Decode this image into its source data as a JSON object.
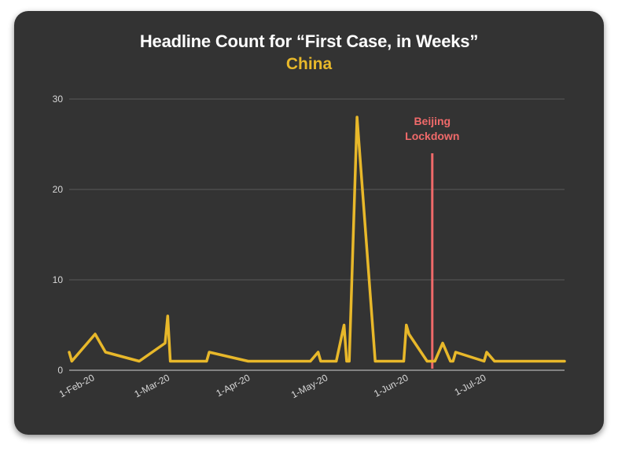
{
  "header": {
    "title": "Headline Count for “First Case, in Weeks”",
    "subtitle": "China"
  },
  "colors": {
    "background": "#333333",
    "line": "#E8B82A",
    "annotation": "#F06A6A",
    "grid": "#5a5a5a",
    "axis": "#d0d0d0"
  },
  "chart_data": {
    "type": "line",
    "title": "Headline Count for “First Case, in Weeks”",
    "subtitle": "China",
    "xlabel": "",
    "ylabel": "",
    "xlim": [
      "2020-01-22",
      "2020-07-31"
    ],
    "ylim": [
      0,
      30
    ],
    "yticks": [
      0,
      10,
      20,
      30
    ],
    "x_tick_labels": [
      {
        "date": "2020-02-01",
        "label": "1-Feb-20"
      },
      {
        "date": "2020-03-01",
        "label": "1-Mar-20"
      },
      {
        "date": "2020-04-01",
        "label": "1-Apr-20"
      },
      {
        "date": "2020-05-01",
        "label": "1-May-20"
      },
      {
        "date": "2020-06-01",
        "label": "1-Jun-20"
      },
      {
        "date": "2020-07-01",
        "label": "1-Jul-20"
      }
    ],
    "grid": true,
    "series": [
      {
        "color": "#E8B82A",
        "points": [
          [
            "2020-01-22",
            2
          ],
          [
            "2020-01-23",
            1
          ],
          [
            "2020-02-01",
            4
          ],
          [
            "2020-02-05",
            2
          ],
          [
            "2020-02-18",
            1
          ],
          [
            "2020-02-28",
            3
          ],
          [
            "2020-02-29",
            6
          ],
          [
            "2020-03-01",
            1
          ],
          [
            "2020-03-15",
            1
          ],
          [
            "2020-03-16",
            2
          ],
          [
            "2020-03-31",
            1
          ],
          [
            "2020-04-24",
            1
          ],
          [
            "2020-04-27",
            2
          ],
          [
            "2020-04-28",
            1
          ],
          [
            "2020-05-04",
            1
          ],
          [
            "2020-05-07",
            5
          ],
          [
            "2020-05-08",
            1
          ],
          [
            "2020-05-09",
            1
          ],
          [
            "2020-05-12",
            28
          ],
          [
            "2020-05-19",
            1
          ],
          [
            "2020-05-30",
            1
          ],
          [
            "2020-05-31",
            5
          ],
          [
            "2020-06-01",
            4
          ],
          [
            "2020-06-08",
            1
          ],
          [
            "2020-06-11",
            1
          ],
          [
            "2020-06-14",
            3
          ],
          [
            "2020-06-17",
            1
          ],
          [
            "2020-06-18",
            1
          ],
          [
            "2020-06-19",
            2
          ],
          [
            "2020-06-30",
            1
          ],
          [
            "2020-07-01",
            2
          ],
          [
            "2020-07-04",
            1
          ],
          [
            "2020-07-31",
            1
          ]
        ]
      }
    ],
    "annotations": [
      {
        "type": "vline",
        "date": "2020-06-10",
        "y_top": 24,
        "label": [
          "Beijing",
          "Lockdown"
        ],
        "color": "#F06A6A"
      }
    ]
  }
}
